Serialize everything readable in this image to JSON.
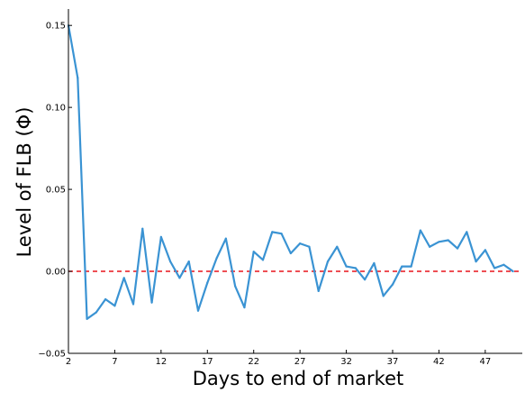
{
  "chart_data": {
    "type": "line",
    "title": "",
    "xlabel": "Days to end of market",
    "ylabel": "Level of FLB (Φ)",
    "xlim": [
      2,
      51
    ],
    "ylim": [
      -0.05,
      0.16
    ],
    "xticks": [
      2,
      7,
      12,
      17,
      22,
      27,
      32,
      37,
      42,
      47
    ],
    "yticks": [
      -0.05,
      0.0,
      0.05,
      0.1,
      0.15
    ],
    "ytick_labels": [
      "−0.05",
      "0.00",
      "0.05",
      "0.10",
      "0.15"
    ],
    "grid": false,
    "legend": "none",
    "series": [
      {
        "color": "#3a93d3",
        "x": [
          2,
          3,
          4,
          5,
          6,
          7,
          8,
          9,
          10,
          11,
          12,
          13,
          14,
          15,
          16,
          17,
          18,
          19,
          20,
          21,
          22,
          23,
          24,
          25,
          26,
          27,
          28,
          29,
          30,
          31,
          32,
          33,
          34,
          35,
          36,
          37,
          38,
          39,
          40,
          41,
          42,
          43,
          44,
          45,
          46,
          47,
          48,
          49,
          50
        ],
        "y": [
          0.15,
          0.118,
          -0.029,
          -0.025,
          -0.017,
          -0.021,
          -0.004,
          -0.02,
          0.026,
          -0.019,
          0.021,
          0.006,
          -0.004,
          0.006,
          -0.024,
          -0.007,
          0.008,
          0.02,
          -0.009,
          -0.022,
          0.012,
          0.007,
          0.024,
          0.023,
          0.011,
          0.017,
          0.015,
          -0.012,
          0.006,
          0.015,
          0.003,
          0.002,
          -0.005,
          0.005,
          -0.015,
          -0.008,
          0.003,
          0.003,
          0.025,
          0.015,
          0.018,
          0.019,
          0.014,
          0.024,
          0.006,
          0.013,
          0.002,
          0.004,
          0.0
        ]
      }
    ],
    "reference_line": {
      "y": 0.0,
      "color": "#e8141c",
      "style": "dashed"
    }
  }
}
